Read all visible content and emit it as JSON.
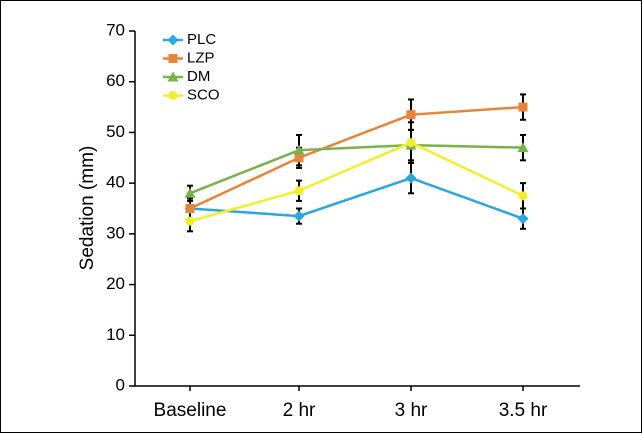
{
  "chart_data": {
    "type": "line",
    "y_label": "Sedation (mm)",
    "categories": [
      "Baseline",
      "2 hr",
      "3 hr",
      "3.5 hr"
    ],
    "ylim": [
      0,
      70
    ],
    "yticks": [
      0,
      10,
      20,
      30,
      40,
      50,
      60,
      70
    ],
    "legend": "top-left",
    "error_color": "#000000",
    "series": [
      {
        "name": "PLC",
        "color": "#2ba6de",
        "marker": "diamond",
        "values": [
          35,
          33.5,
          41,
          33
        ],
        "errors": [
          2,
          1.5,
          3,
          2
        ]
      },
      {
        "name": "LZP",
        "color": "#e8843a",
        "marker": "square",
        "values": [
          35,
          45,
          53.5,
          55
        ],
        "errors": [
          2,
          2,
          3,
          2.5
        ]
      },
      {
        "name": "DM",
        "color": "#79b24b",
        "marker": "triangle",
        "values": [
          38,
          46.5,
          47.5,
          47
        ],
        "errors": [
          1.5,
          3,
          3,
          2.5
        ]
      },
      {
        "name": "SCO",
        "color": "#f3ee2c",
        "marker": "circle",
        "values": [
          32.5,
          38.5,
          48,
          37.5
        ],
        "errors": [
          2,
          2,
          4,
          2.5
        ]
      }
    ]
  }
}
